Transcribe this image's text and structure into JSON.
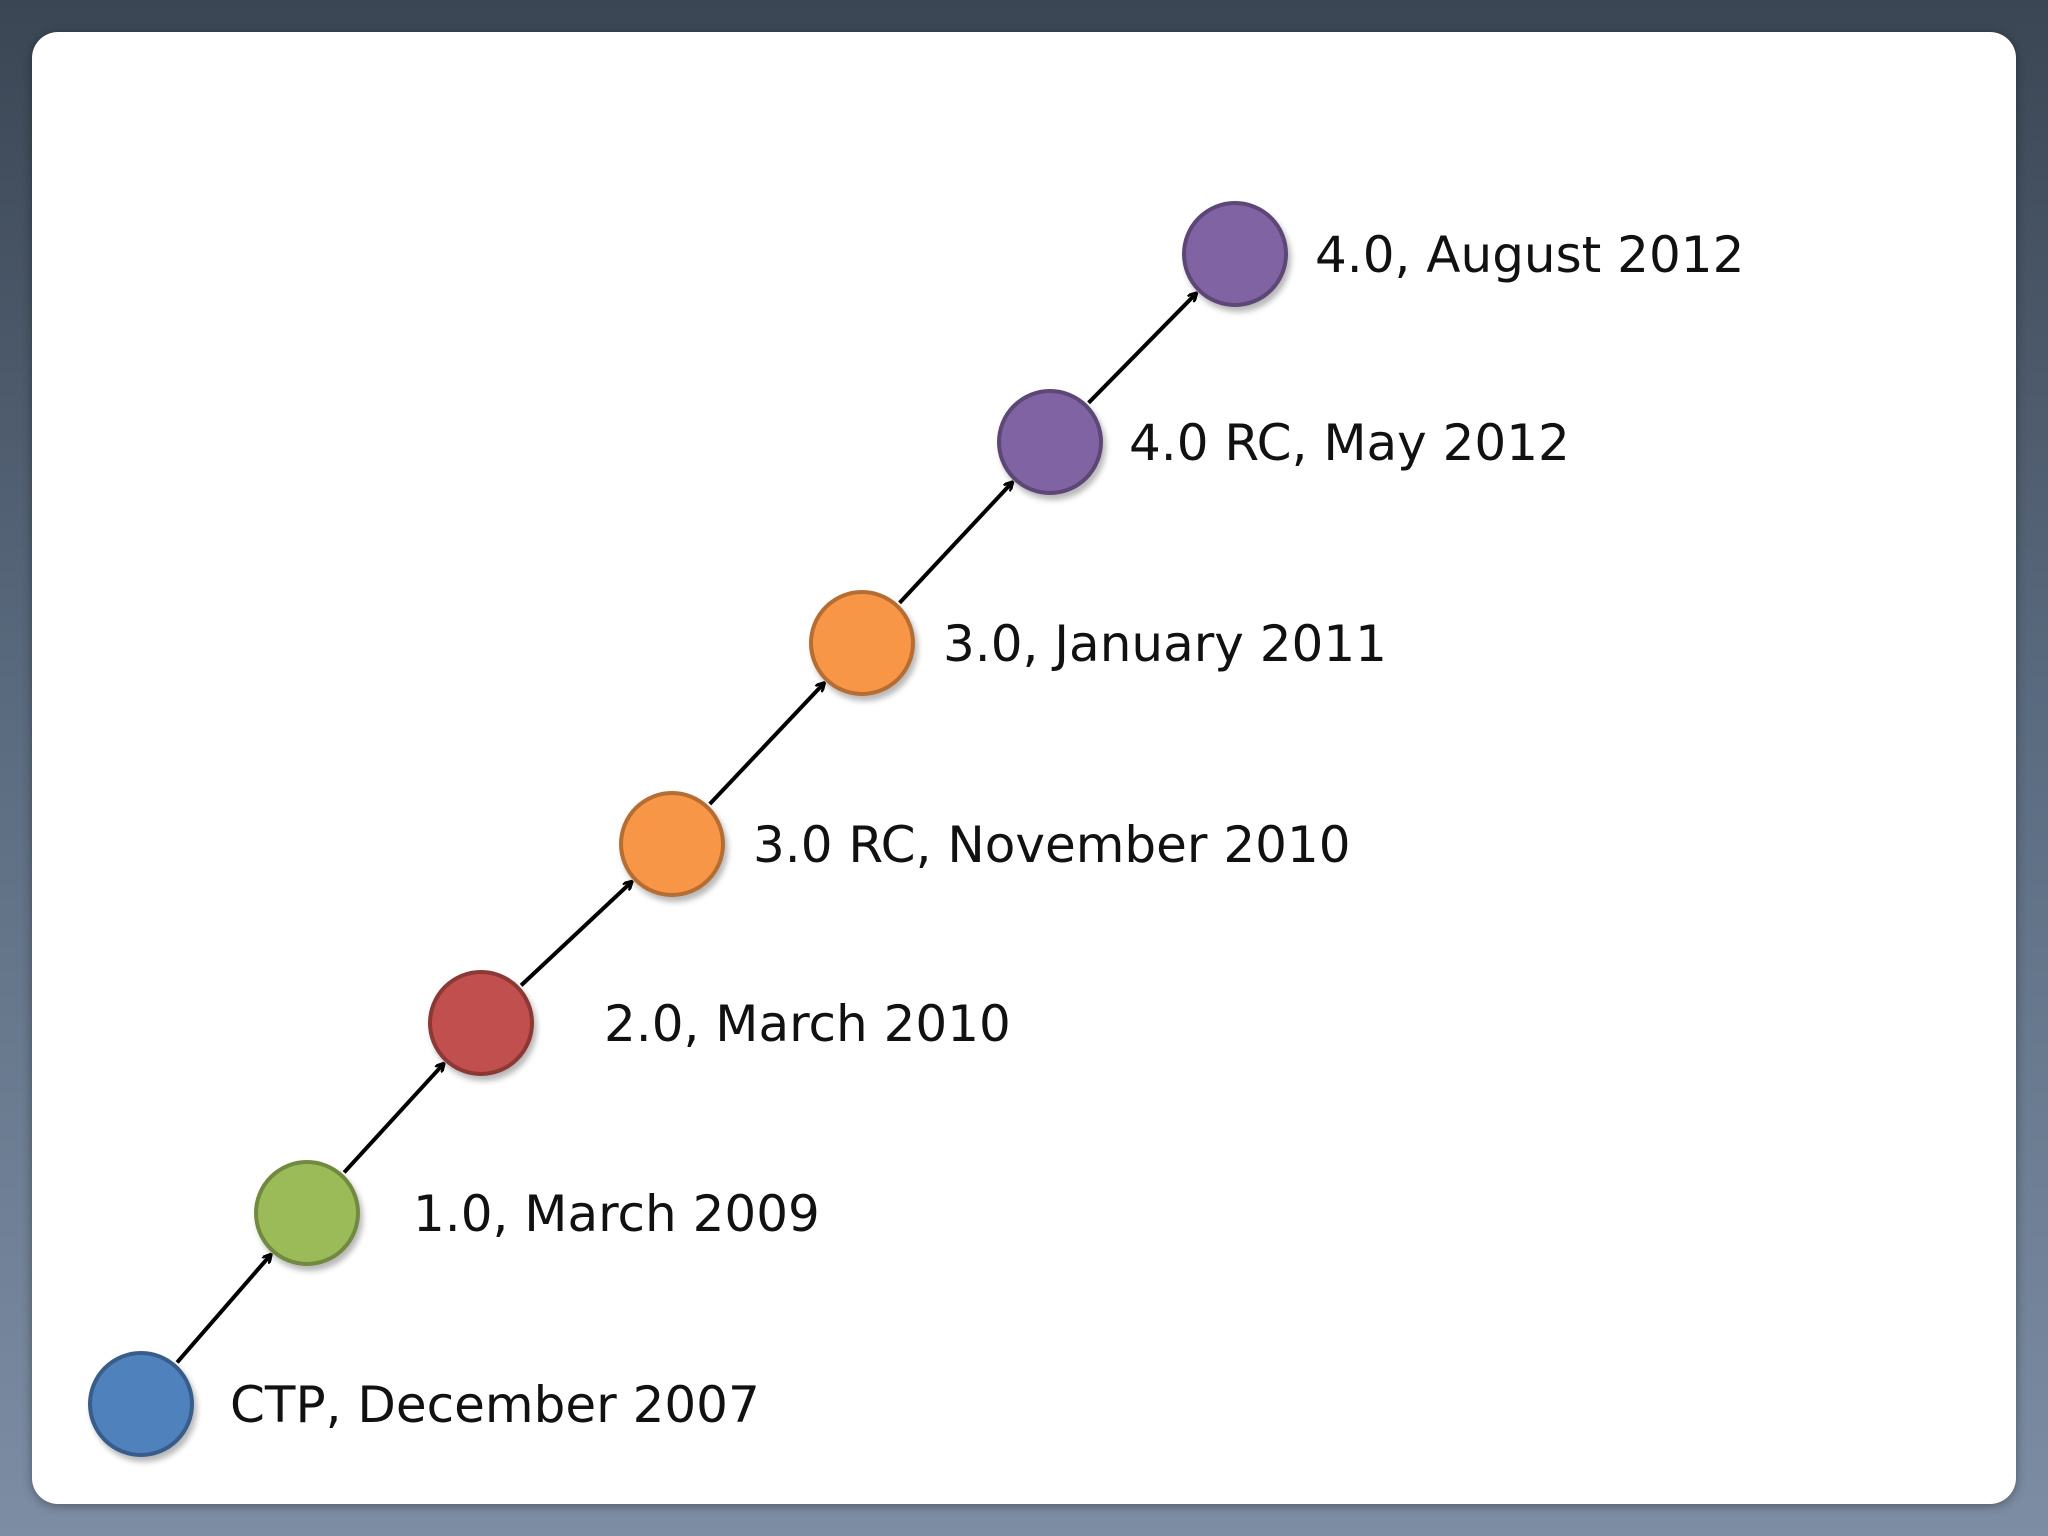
{
  "timeline": {
    "milestones": [
      {
        "label": "CTP, December 2007",
        "color": "#4f81bd",
        "stroke": "#385d8a"
      },
      {
        "label": "1.0, March 2009",
        "color": "#9bbb59",
        "stroke": "#71893f"
      },
      {
        "label": "2.0, March 2010",
        "color": "#c0504d",
        "stroke": "#8c3836"
      },
      {
        "label": "3.0 RC, November 2010",
        "color": "#f79646",
        "stroke": "#b66d31"
      },
      {
        "label": "3.0, January 2011",
        "color": "#f79646",
        "stroke": "#b66d31"
      },
      {
        "label": "4.0 RC, May 2012",
        "color": "#8064a2",
        "stroke": "#5c4776"
      },
      {
        "label": "4.0, August 2012",
        "color": "#8064a2",
        "stroke": "#5c4776"
      }
    ],
    "arrow_color": "#000000"
  }
}
